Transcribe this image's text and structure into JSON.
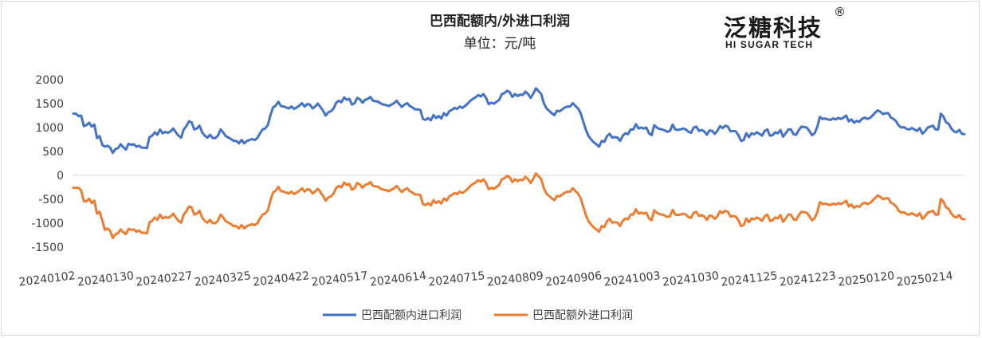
{
  "brand": {
    "name_cn": "泛糖科技",
    "name_en": "HI SUGAR TECH",
    "registered_mark": "®"
  },
  "chart_data": {
    "type": "line",
    "title": "巴西配额内/外进口利润",
    "subtitle": "单位：元/吨",
    "ylim": [
      -1500,
      2000
    ],
    "yticks": [
      -1500,
      -1000,
      -500,
      0,
      500,
      1000,
      1500,
      2000
    ],
    "ytick_labels": [
      "-1500",
      "-1000",
      "-500",
      "0",
      "500",
      "1000",
      "1500",
      "2000"
    ],
    "xtick_labels": [
      "20240102",
      "20240130",
      "20240227",
      "20240325",
      "20240422",
      "20240517",
      "20240614",
      "20240715",
      "20240809",
      "20240906",
      "20241003",
      "20241030",
      "20241125",
      "20241223",
      "20250120",
      "20250214"
    ],
    "grid": false,
    "legend_position": "bottom",
    "colors": [
      "#4472c4",
      "#ed7d31"
    ],
    "series": [
      {
        "name": "巴西配额内进口利润",
        "values": [
          1290,
          1290,
          1240,
          1250,
          1030,
          1050,
          1100,
          1020,
          1060,
          780,
          820,
          640,
          600,
          620,
          580,
          470,
          550,
          570,
          650,
          590,
          540,
          660,
          640,
          650,
          600,
          620,
          580,
          580,
          570,
          800,
          830,
          900,
          850,
          960,
          880,
          910,
          890,
          920,
          980,
          900,
          830,
          790,
          960,
          1030,
          1130,
          1110,
          960,
          980,
          1040,
          900,
          830,
          790,
          850,
          780,
          780,
          830,
          960,
          900,
          820,
          790,
          760,
          720,
          720,
          670,
          740,
          670,
          720,
          740,
          760,
          740,
          780,
          880,
          960,
          980,
          1050,
          1260,
          1420,
          1460,
          1540,
          1450,
          1440,
          1420,
          1400,
          1440,
          1390,
          1420,
          1460,
          1510,
          1440,
          1490,
          1480,
          1400,
          1440,
          1500,
          1430,
          1350,
          1250,
          1320,
          1340,
          1400,
          1520,
          1560,
          1530,
          1630,
          1580,
          1600,
          1480,
          1510,
          1620,
          1590,
          1520,
          1580,
          1600,
          1640,
          1560,
          1550,
          1540,
          1500,
          1480,
          1470,
          1450,
          1480,
          1510,
          1560,
          1490,
          1430,
          1480,
          1510,
          1450,
          1420,
          1380,
          1380,
          1370,
          1180,
          1160,
          1200,
          1150,
          1260,
          1200,
          1240,
          1190,
          1300,
          1250,
          1340,
          1370,
          1410,
          1390,
          1440,
          1410,
          1450,
          1500,
          1560,
          1600,
          1630,
          1680,
          1650,
          1700,
          1620,
          1490,
          1520,
          1500,
          1540,
          1580,
          1700,
          1720,
          1770,
          1740,
          1640,
          1700,
          1660,
          1690,
          1680,
          1750,
          1700,
          1620,
          1710,
          1820,
          1760,
          1700,
          1510,
          1400,
          1350,
          1300,
          1260,
          1350,
          1340,
          1380,
          1420,
          1440,
          1440,
          1510,
          1450,
          1400,
          1300,
          1120,
          950,
          820,
          750,
          690,
          650,
          600,
          720,
          700,
          820,
          870,
          790,
          800,
          790,
          720,
          830,
          880,
          860,
          960,
          960,
          1070,
          980,
          1000,
          980,
          1000,
          880,
          840,
          1050,
          1000,
          970,
          960,
          940,
          910,
          930,
          1060,
          960,
          950,
          960,
          980,
          960,
          910,
          890,
          1000,
          1020,
          930,
          950,
          920,
          850,
          940,
          930,
          870,
          930,
          1030,
          990,
          1040,
          1020,
          920,
          930,
          920,
          840,
          720,
          740,
          880,
          800,
          880,
          860,
          900,
          870,
          830,
          930,
          960,
          830,
          840,
          900,
          880,
          950,
          810,
          880,
          960,
          960,
          860,
          850,
          950,
          1020,
          1010,
          1000,
          930,
          840,
          880,
          1010,
          1220,
          1180,
          1190,
          1170,
          1160,
          1190,
          1170,
          1200,
          1180,
          1210,
          1250,
          1130,
          1170,
          1100,
          1140,
          1120,
          1180,
          1210,
          1180,
          1200,
          1250,
          1310,
          1360,
          1330,
          1280,
          1300,
          1300,
          1210,
          1180,
          1130,
          1040,
          1000,
          1010,
          970,
          960,
          990,
          960,
          930,
          990,
          870,
          920,
          1000,
          1020,
          1040,
          960,
          960,
          1290,
          1230,
          1110,
          1080,
          980,
          920,
          900,
          950,
          870,
          860
        ]
      },
      {
        "name": "巴西配额外进口利润",
        "values": [
          -260,
          -260,
          -260,
          -320,
          -540,
          -540,
          -490,
          -580,
          -530,
          -800,
          -760,
          -940,
          -1140,
          -1110,
          -1160,
          -1310,
          -1230,
          -1210,
          -1130,
          -1190,
          -1230,
          -1120,
          -1140,
          -1130,
          -1180,
          -1150,
          -1200,
          -1200,
          -1210,
          -980,
          -950,
          -880,
          -930,
          -820,
          -900,
          -870,
          -890,
          -860,
          -800,
          -880,
          -950,
          -990,
          -820,
          -750,
          -650,
          -670,
          -820,
          -800,
          -740,
          -880,
          -950,
          -990,
          -930,
          -1000,
          -1000,
          -950,
          -820,
          -880,
          -960,
          -990,
          -1020,
          -1060,
          -1060,
          -1110,
          -1040,
          -1110,
          -1060,
          -1040,
          -1020,
          -1040,
          -1000,
          -900,
          -820,
          -800,
          -730,
          -520,
          -360,
          -320,
          -240,
          -330,
          -340,
          -360,
          -380,
          -340,
          -390,
          -360,
          -320,
          -270,
          -340,
          -290,
          -300,
          -380,
          -340,
          -280,
          -350,
          -430,
          -530,
          -460,
          -440,
          -380,
          -260,
          -220,
          -250,
          -150,
          -200,
          -180,
          -300,
          -270,
          -160,
          -190,
          -260,
          -200,
          -180,
          -140,
          -220,
          -230,
          -240,
          -280,
          -300,
          -310,
          -330,
          -300,
          -270,
          -220,
          -290,
          -350,
          -300,
          -270,
          -330,
          -360,
          -400,
          -400,
          -410,
          -600,
          -620,
          -580,
          -630,
          -520,
          -580,
          -540,
          -590,
          -480,
          -530,
          -440,
          -410,
          -370,
          -390,
          -340,
          -370,
          -330,
          -280,
          -220,
          -180,
          -150,
          -100,
          -130,
          -80,
          -160,
          -290,
          -260,
          -280,
          -240,
          -200,
          -80,
          -60,
          -10,
          -40,
          -140,
          -80,
          -120,
          -90,
          -100,
          -30,
          -80,
          -160,
          -70,
          40,
          -20,
          -80,
          -270,
          -380,
          -430,
          -480,
          -520,
          -430,
          -440,
          -400,
          -360,
          -340,
          -340,
          -270,
          -330,
          -380,
          -480,
          -660,
          -830,
          -960,
          -1030,
          -1090,
          -1130,
          -1180,
          -1060,
          -1080,
          -960,
          -910,
          -990,
          -980,
          -990,
          -1060,
          -950,
          -900,
          -920,
          -820,
          -820,
          -710,
          -800,
          -780,
          -800,
          -780,
          -900,
          -940,
          -730,
          -780,
          -810,
          -820,
          -840,
          -870,
          -850,
          -720,
          -820,
          -830,
          -820,
          -800,
          -820,
          -870,
          -890,
          -780,
          -760,
          -850,
          -830,
          -860,
          -930,
          -840,
          -850,
          -910,
          -850,
          -750,
          -790,
          -740,
          -760,
          -860,
          -850,
          -860,
          -940,
          -1060,
          -1040,
          -900,
          -980,
          -900,
          -920,
          -880,
          -910,
          -950,
          -850,
          -820,
          -950,
          -940,
          -880,
          -900,
          -830,
          -970,
          -900,
          -820,
          -820,
          -920,
          -930,
          -830,
          -760,
          -770,
          -780,
          -850,
          -940,
          -900,
          -770,
          -560,
          -600,
          -590,
          -610,
          -620,
          -590,
          -610,
          -580,
          -600,
          -570,
          -530,
          -650,
          -610,
          -680,
          -640,
          -660,
          -600,
          -570,
          -600,
          -580,
          -530,
          -470,
          -420,
          -450,
          -500,
          -480,
          -480,
          -570,
          -600,
          -650,
          -740,
          -780,
          -770,
          -810,
          -820,
          -790,
          -820,
          -850,
          -790,
          -910,
          -860,
          -780,
          -760,
          -740,
          -820,
          -820,
          -490,
          -550,
          -670,
          -700,
          -800,
          -860,
          -880,
          -830,
          -910,
          -920
        ]
      }
    ]
  }
}
